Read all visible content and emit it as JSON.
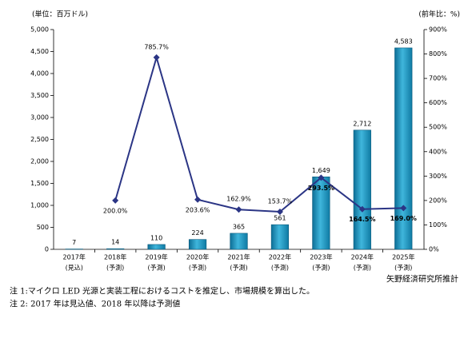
{
  "chart_data": {
    "type": "bar-line",
    "y_axis_title": "(単位：百万ドル)",
    "y2_axis_title": "(前年比：%)",
    "categories": [
      [
        "2017年",
        "(見込)"
      ],
      [
        "2018年",
        "(予測)"
      ],
      [
        "2019年",
        "(予測)"
      ],
      [
        "2020年",
        "(予測)"
      ],
      [
        "2021年",
        "(予測)"
      ],
      [
        "2022年",
        "(予測)"
      ],
      [
        "2023年",
        "(予測)"
      ],
      [
        "2024年",
        "(予測)"
      ],
      [
        "2025年",
        "(予測)"
      ]
    ],
    "series": [
      {
        "type": "bar",
        "color": "#1b8fb8",
        "values": [
          7,
          14,
          110,
          224,
          365,
          561,
          1649,
          2712,
          4583
        ],
        "value_labels": [
          "7",
          "14",
          "110",
          "224",
          "365",
          "561",
          "1,649",
          "2,712",
          "4,583"
        ]
      },
      {
        "type": "line",
        "axis": "y2",
        "color": "#2b3585",
        "values": [
          null,
          200.0,
          785.7,
          203.6,
          162.9,
          153.7,
          293.5,
          164.5,
          169.0
        ],
        "value_labels": [
          null,
          "200.0%",
          "785.7%",
          "203.6%",
          "162.9%",
          "153.7%",
          "293.5%",
          "164.5%",
          "169.0%"
        ]
      }
    ],
    "ylim": [
      0,
      5000
    ],
    "yticks": [
      0,
      500,
      {
        "value": 1000,
        "label": "1,000"
      },
      {
        "value": 1500,
        "label": "1,500"
      },
      {
        "value": 2000,
        "label": "2,000"
      },
      {
        "value": 2500,
        "label": "2,500"
      },
      {
        "value": 3000,
        "label": "3,000"
      },
      {
        "value": 3500,
        "label": "3,500"
      },
      {
        "value": 4000,
        "label": "4,000"
      },
      {
        "value": 4500,
        "label": "4,500"
      },
      {
        "value": 5000,
        "label": "5,000"
      }
    ],
    "y2lim": [
      0,
      900
    ],
    "y2ticks": [
      {
        "value": 0,
        "label": "0%"
      },
      {
        "value": 100,
        "label": "100%"
      },
      {
        "value": 200,
        "label": "200%"
      },
      {
        "value": 300,
        "label": "300%"
      },
      {
        "value": 400,
        "label": "400%"
      },
      {
        "value": 500,
        "label": "500%"
      },
      {
        "value": 600,
        "label": "600%"
      },
      {
        "value": 700,
        "label": "700%"
      },
      {
        "value": 800,
        "label": "800%"
      },
      {
        "value": 900,
        "label": "900%"
      }
    ],
    "source": "矢野経済研究所推計",
    "notes": [
      "注 1:マイクロ LED 光源と実装工程におけるコストを推定し、市場規模を算出した。",
      "注 2: 2017 年は見込値、2018 年以降は予測値"
    ],
    "grid": false
  }
}
